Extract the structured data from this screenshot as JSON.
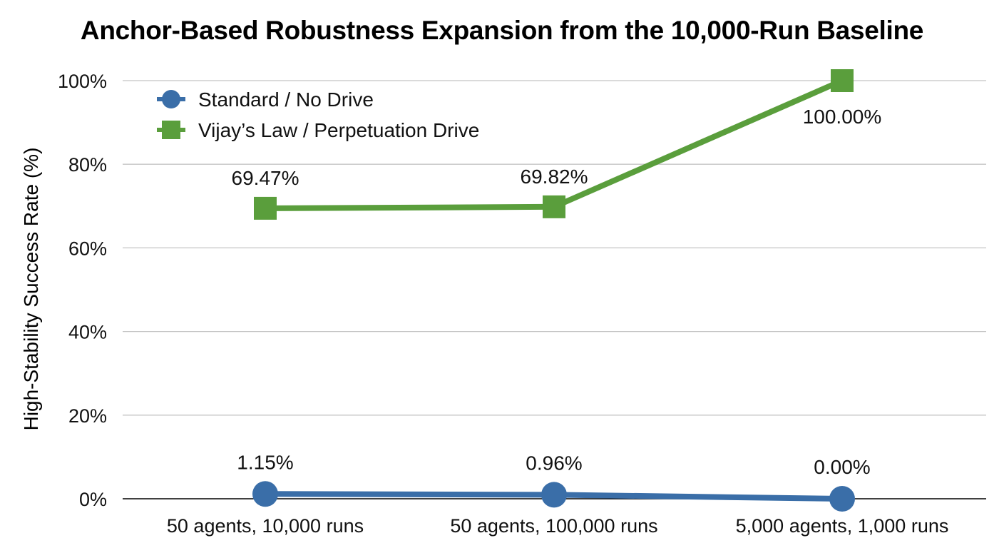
{
  "chart_data": {
    "type": "line",
    "title": "Anchor-Based Robustness Expansion from the 10,000-Run Baseline",
    "xlabel": "",
    "ylabel": "High-Stability Success Rate (%)",
    "categories": [
      "50 agents, 10,000 runs",
      "50 agents, 100,000 runs",
      "5,000 agents, 1,000 runs"
    ],
    "ylim": [
      0,
      100
    ],
    "yticks": [
      "0%",
      "20%",
      "40%",
      "60%",
      "80%",
      "100%"
    ],
    "grid": true,
    "legend_position": "top-left",
    "series": [
      {
        "name": "Standard / No Drive",
        "values": [
          1.15,
          0.96,
          0.0
        ],
        "labels": [
          "1.15%",
          "0.96%",
          "0.00%"
        ],
        "marker": "circle",
        "color": "#3a6ea8"
      },
      {
        "name": "Vijay’s Law / Perpetuation Drive",
        "values": [
          69.47,
          69.82,
          100.0
        ],
        "labels": [
          "69.47%",
          "69.82%",
          "100.00%"
        ],
        "marker": "square",
        "color": "#5a9e3c"
      }
    ]
  }
}
